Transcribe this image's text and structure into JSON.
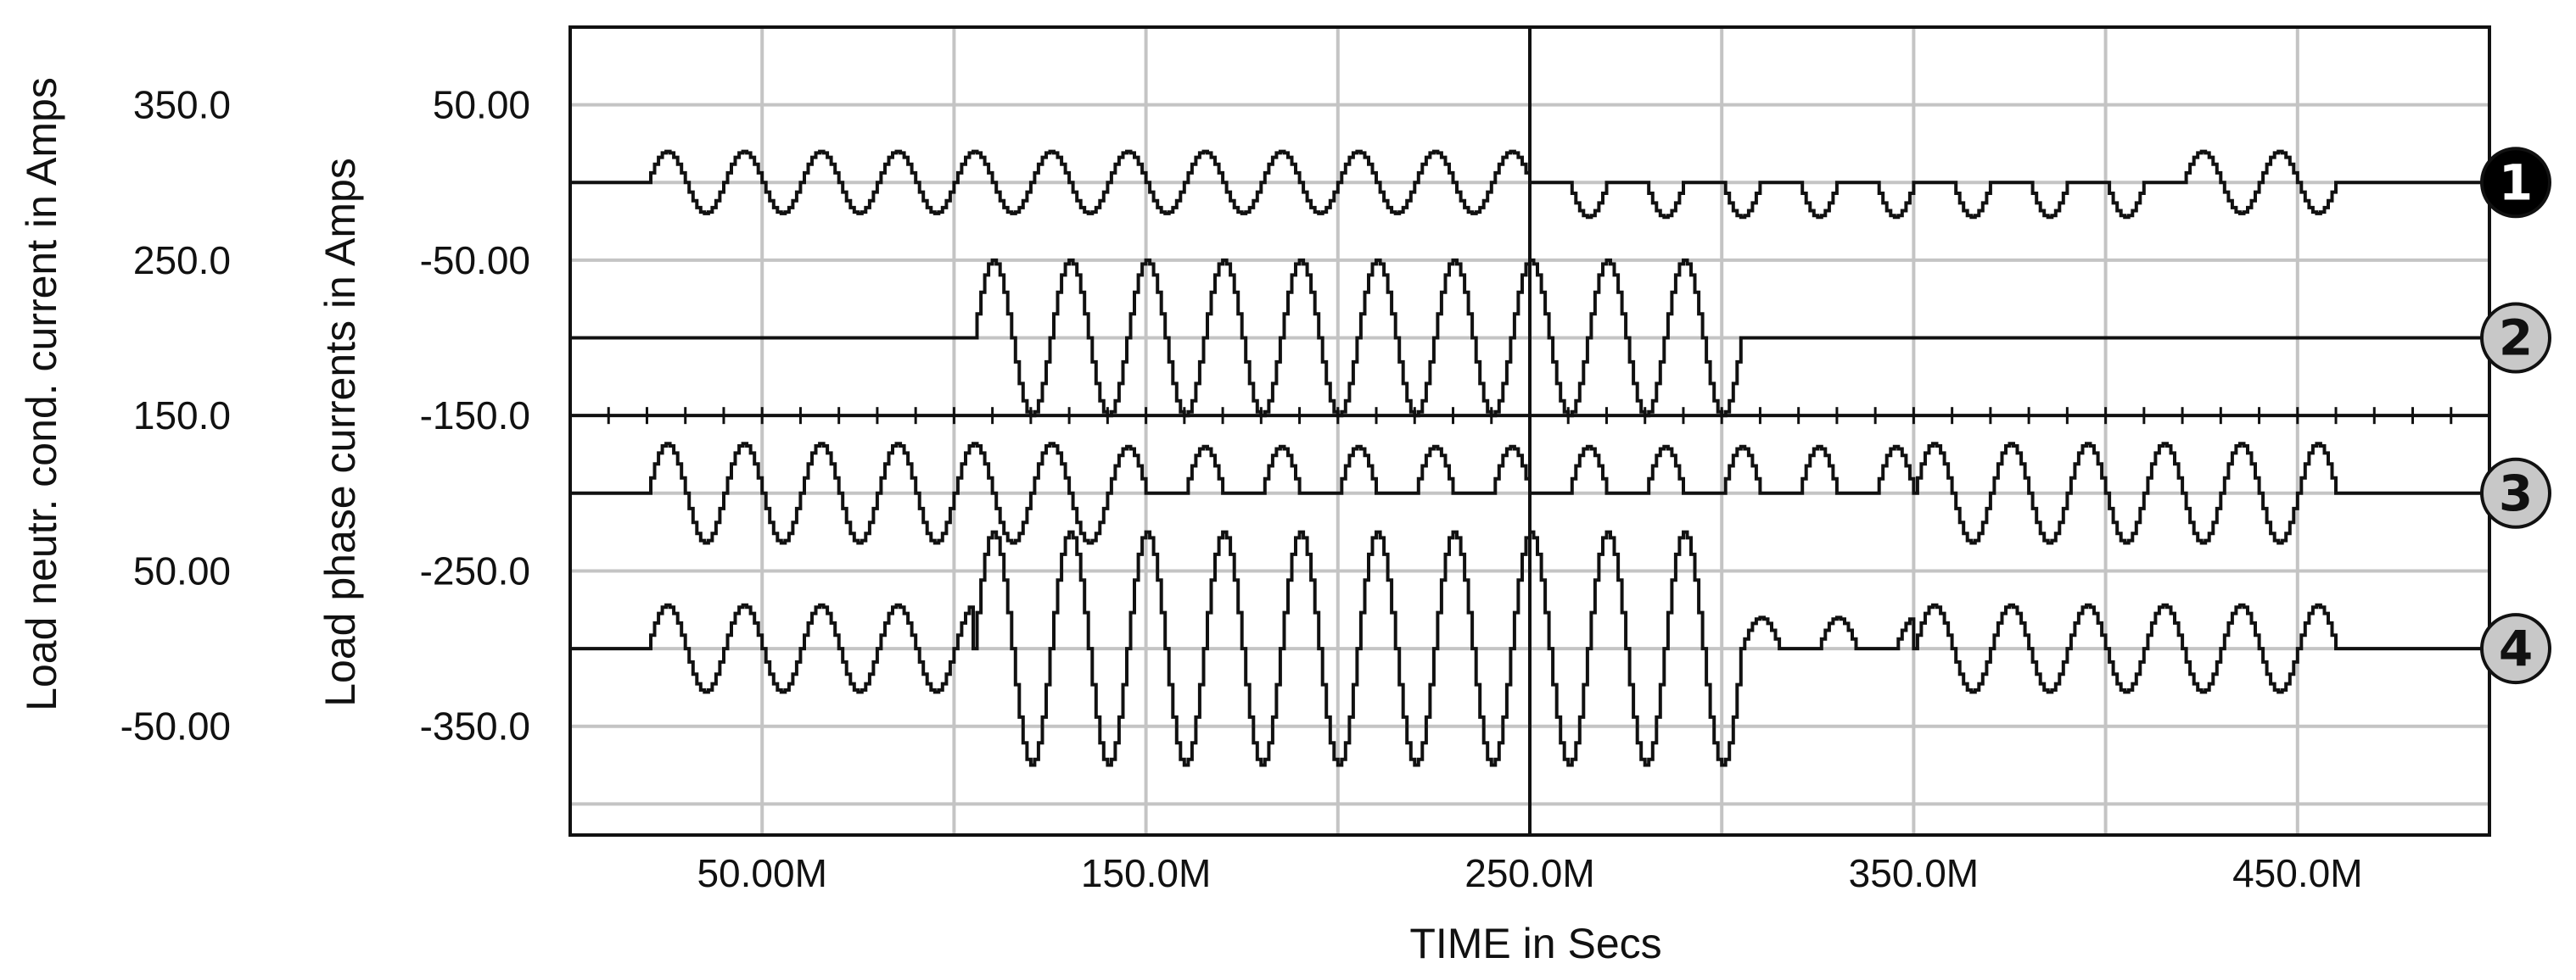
{
  "chart_data": {
    "type": "line",
    "xlabel": "TIME in Secs",
    "ylabel_phase": "Load phase currents in Amps",
    "ylabel_neutral": "Load neutr. cond. current in Amps",
    "xlim": [
      0,
      500
    ],
    "x_tick_labels": [
      {
        "value": 50,
        "label": "50.00M"
      },
      {
        "value": 150,
        "label": "150.0M"
      },
      {
        "value": 250,
        "label": "250.0M"
      },
      {
        "value": 350,
        "label": "350.0M"
      },
      {
        "value": 450,
        "label": "450.0M"
      }
    ],
    "phase_axis": {
      "ylim": [
        -420,
        100
      ],
      "ticks": [
        {
          "value": 50,
          "label": "50.00"
        },
        {
          "value": -50,
          "label": "-50.00"
        },
        {
          "value": -150,
          "label": "-150.0"
        },
        {
          "value": -250,
          "label": "-250.0"
        },
        {
          "value": -350,
          "label": "-350.0"
        }
      ]
    },
    "neutral_axis": {
      "ylim": [
        -120,
        400
      ],
      "ticks": [
        {
          "value": 350,
          "label": "350.0"
        },
        {
          "value": 250,
          "label": "250.0"
        },
        {
          "value": 150,
          "label": "150.0"
        },
        {
          "value": 50,
          "label": "50.00"
        },
        {
          "value": -50,
          "label": "-50.00"
        }
      ]
    },
    "grid": true,
    "cursor_x": 250,
    "separator_value": -150,
    "series": [
      {
        "name": "1",
        "baseline": 0,
        "period": 20,
        "segments": [
          {
            "start": 20,
            "end": 250,
            "amplitude": 20,
            "shape": "sine"
          },
          {
            "start": 250,
            "end": 420,
            "amplitude": 16,
            "shape": "flat"
          },
          {
            "start": 420,
            "end": 460,
            "amplitude": 20,
            "shape": "sine"
          }
        ]
      },
      {
        "name": "2",
        "baseline": -100,
        "period": 20,
        "segments": [
          {
            "start": 105,
            "end": 305,
            "amplitude": 50,
            "shape": "sine",
            "offset": 0
          }
        ]
      },
      {
        "name": "3",
        "baseline": -200,
        "period": 20,
        "segments": [
          {
            "start": 20,
            "end": 140,
            "amplitude": 32,
            "shape": "sine"
          },
          {
            "start": 140,
            "end": 350,
            "amplitude": 30,
            "shape": "halfpos"
          },
          {
            "start": 350,
            "end": 460,
            "amplitude": 32,
            "shape": "sine"
          }
        ]
      },
      {
        "name": "4",
        "baseline": -300,
        "period": 20,
        "segments": [
          {
            "start": 20,
            "end": 105,
            "amplitude": 28,
            "shape": "sine"
          },
          {
            "start": 105,
            "end": 305,
            "amplitude": 75,
            "shape": "sine"
          },
          {
            "start": 305,
            "end": 350,
            "amplitude": 20,
            "shape": "halfpos"
          },
          {
            "start": 350,
            "end": 460,
            "amplitude": 28,
            "shape": "sine"
          }
        ]
      }
    ]
  }
}
